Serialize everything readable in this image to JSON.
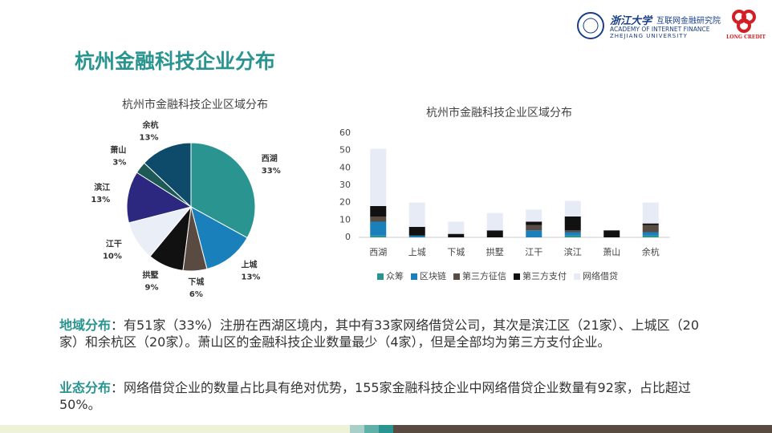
{
  "header": {
    "logo_cn": "浙江大学",
    "institute": "互联网金融研究院",
    "institute_en": "ACADEMY OF INTERNET FINANCE",
    "university_en": "ZHEJIANG UNIVERSITY",
    "brand": "LONG CREDIT"
  },
  "title": "杭州金融科技企业分布",
  "chart_data": [
    {
      "type": "pie",
      "title": "杭州市金融科技企业区域分布",
      "categories": [
        "西湖",
        "上城",
        "下城",
        "拱墅",
        "江干",
        "滨江",
        "萧山",
        "余杭"
      ],
      "values": [
        33,
        13,
        6,
        9,
        10,
        13,
        3,
        13
      ],
      "value_labels": [
        "33%",
        "13%",
        "6%",
        "9%",
        "10%",
        "13%",
        "3%",
        "13%"
      ],
      "colors": [
        "#2a9490",
        "#1a80bb",
        "#5a4b42",
        "#111111",
        "#e9eef7",
        "#2c2880",
        "#1e5a55",
        "#0e4a6a"
      ]
    },
    {
      "type": "stacked_bar",
      "title": "杭州市金融科技企业区域分布",
      "categories": [
        "西湖",
        "上城",
        "下城",
        "拱墅",
        "江干",
        "滨江",
        "萧山",
        "余杭"
      ],
      "series": [
        {
          "name": "众筹",
          "color": "#2a9490",
          "values": [
            1,
            0,
            0,
            0,
            0,
            1,
            0,
            1
          ]
        },
        {
          "name": "区块链",
          "color": "#1a80bb",
          "values": [
            8,
            1,
            0,
            0,
            4,
            2,
            0,
            2
          ]
        },
        {
          "name": "第三方征信",
          "color": "#5a4b42",
          "values": [
            3,
            0,
            0,
            0,
            3,
            1,
            0,
            4
          ]
        },
        {
          "name": "第三方支付",
          "color": "#111111",
          "values": [
            6,
            5,
            2,
            4,
            2,
            8,
            4,
            1
          ]
        },
        {
          "name": "网络借贷",
          "color": "#e6ebf6",
          "values": [
            33,
            14,
            7,
            10,
            7,
            9,
            0,
            12
          ]
        }
      ],
      "ylim": [
        0,
        60
      ],
      "yticks": [
        0,
        10,
        20,
        30,
        40,
        50,
        60
      ],
      "legend": "bottom"
    }
  ],
  "paragraphs": [
    {
      "lead": "地域分布",
      "body": "：有51家（33%）注册在西湖区境内，其中有33家网络借贷公司，其次是滨江区（21家）、上城区（20家）和余杭区（20家）。萧山区的金融科技企业数量最少（4家），但是全部均为第三方支付企业。"
    },
    {
      "lead": "业态分布",
      "body": "：网络借贷企业的数量占比具有绝对优势，155家金融科技企业中网络借贷企业数量有92家，占比超过50%。"
    }
  ]
}
